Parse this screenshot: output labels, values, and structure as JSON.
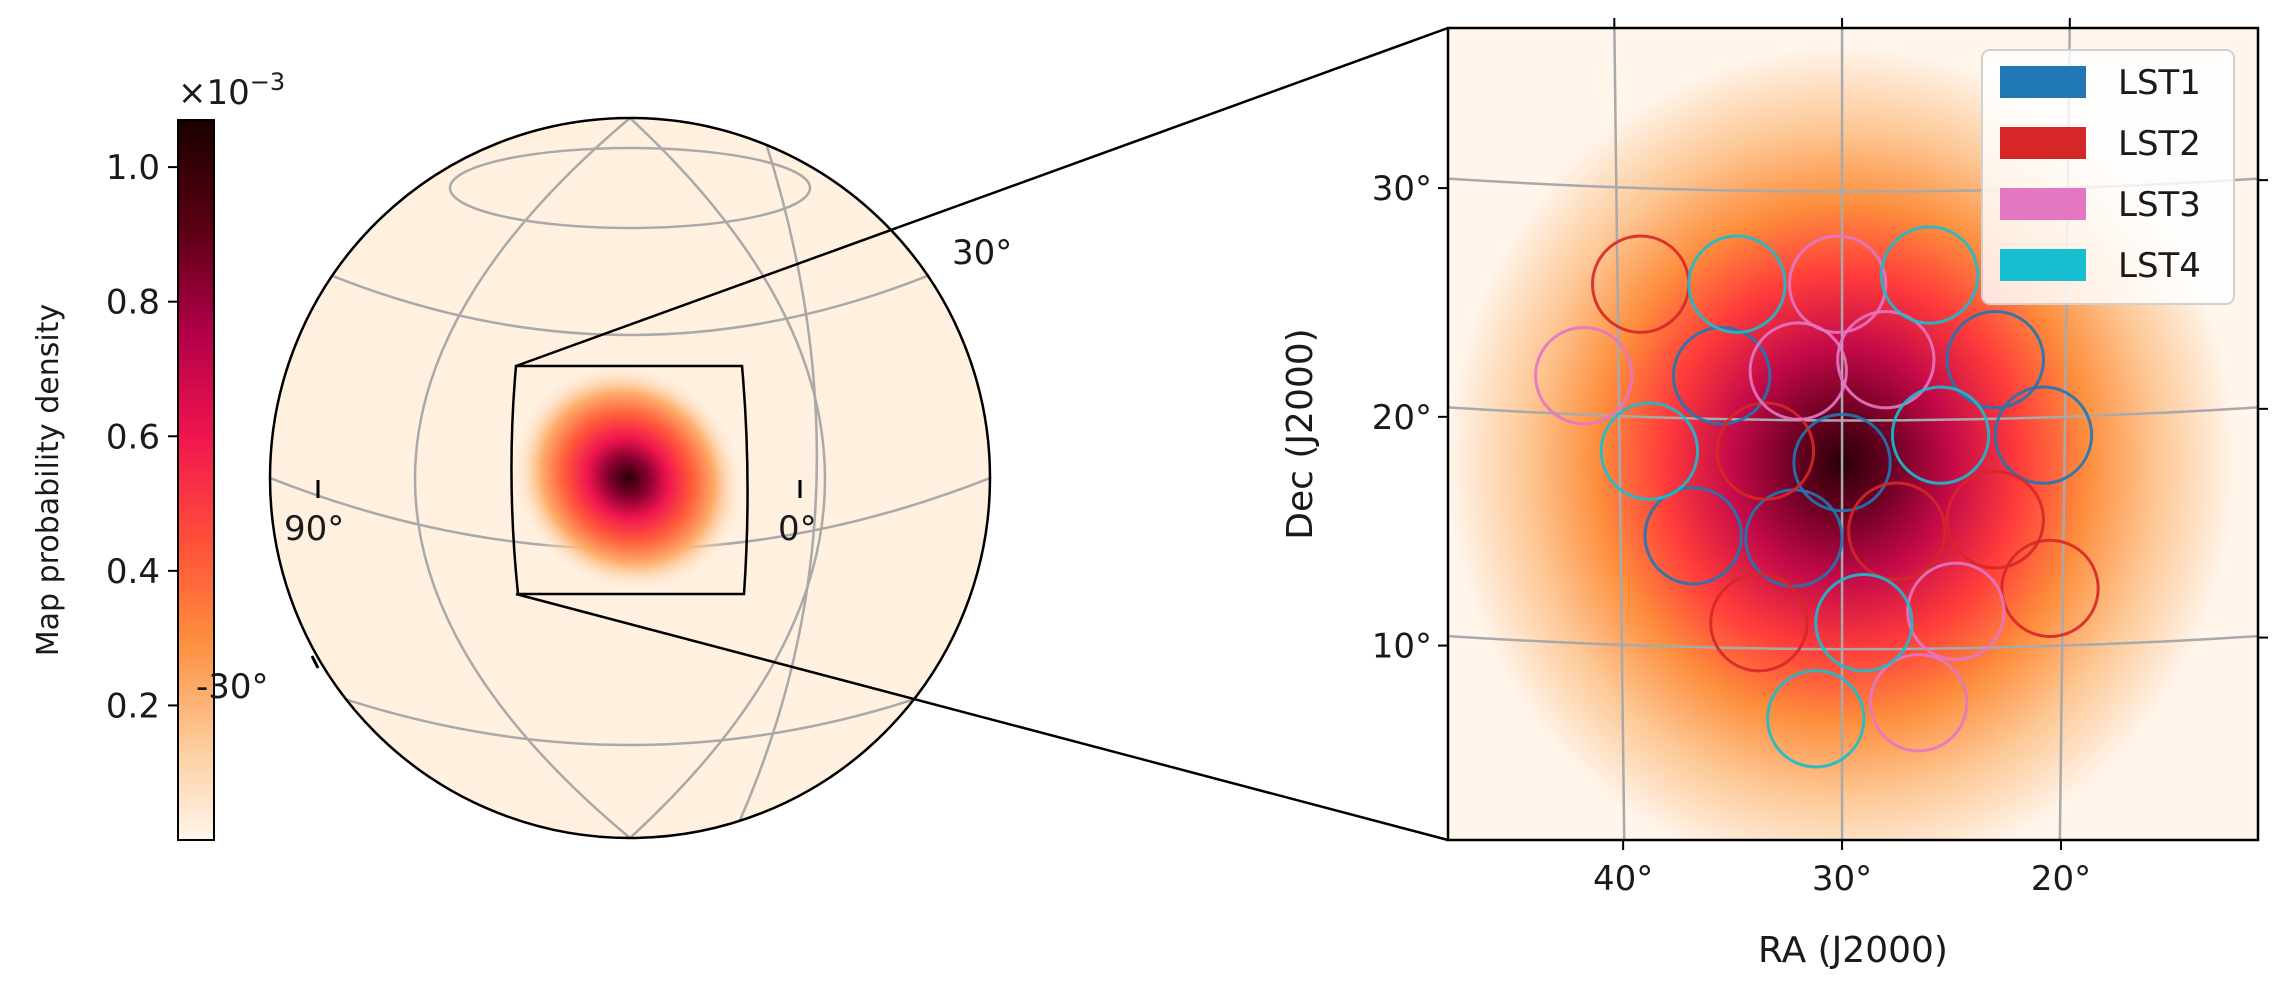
{
  "colorbar": {
    "label": "Map probability density",
    "exponent_prefix": "×10",
    "exponent_power": "−3",
    "range": [
      0.0,
      1.07
    ],
    "ticks": [
      {
        "value": 0.2,
        "label": "0.2"
      },
      {
        "value": 0.4,
        "label": "0.4"
      },
      {
        "value": 0.6,
        "label": "0.6"
      },
      {
        "value": 0.8,
        "label": "0.8"
      },
      {
        "value": 1.0,
        "label": "1.0"
      }
    ],
    "colormap": [
      "#fff5eb",
      "#fdd0a2",
      "#fd8d3c",
      "#ff4d3a",
      "#f0154f",
      "#b4004a",
      "#5a0013",
      "#1a0000"
    ]
  },
  "globe": {
    "dec_labels": [
      "30°",
      "-30°"
    ],
    "ra_labels": [
      "90°",
      "0°"
    ]
  },
  "chart_data": [
    {
      "type": "heatmap",
      "title": "",
      "description_values": "sky probability density map, orthographic globe view",
      "peak_density": 1.07,
      "peak_ra_deg": 30,
      "peak_dec_deg": 18
    },
    {
      "type": "scatter",
      "xlabel": "RA (J2000)",
      "ylabel": "Dec (J2000)",
      "xlim": [
        48,
        11
      ],
      "ylim": [
        1.5,
        37
      ],
      "x_ticks": [
        {
          "value": 40,
          "label": "40°"
        },
        {
          "value": 30,
          "label": "30°"
        },
        {
          "value": 20,
          "label": "20°"
        }
      ],
      "y_ticks": [
        {
          "value": 10,
          "label": "10°"
        },
        {
          "value": 20,
          "label": "20°"
        },
        {
          "value": 30,
          "label": "30°"
        }
      ],
      "grid": true,
      "legend_position": "top-right",
      "heatmap": {
        "peak_ra": 30,
        "peak_dec": 18,
        "peak_value": 1.07
      },
      "series": [
        {
          "name": "LST1",
          "color": "#1f77b4",
          "radius_deg": 2.2,
          "pointings": [
            [
              23,
              22.5
            ],
            [
              20.8,
              19.2
            ],
            [
              36.8,
              14.8
            ],
            [
              32.2,
              14.7
            ],
            [
              35.5,
              21.8
            ],
            [
              30,
              18
            ]
          ]
        },
        {
          "name": "LST2",
          "color": "#d62728",
          "radius_deg": 2.2,
          "pointings": [
            [
              39.2,
              25.8
            ],
            [
              20.5,
              12.5
            ],
            [
              33.8,
              11
            ],
            [
              23,
              15.5
            ],
            [
              27.5,
              15
            ],
            [
              33.5,
              18.5
            ]
          ]
        },
        {
          "name": "LST3",
          "color": "#e377c2",
          "radius_deg": 2.2,
          "pointings": [
            [
              41.8,
              21.8
            ],
            [
              30.2,
              25.8
            ],
            [
              32,
              22
            ],
            [
              28,
              22.5
            ],
            [
              24.8,
              11.5
            ],
            [
              26.5,
              7.5
            ]
          ]
        },
        {
          "name": "LST4",
          "color": "#17becf",
          "radius_deg": 2.2,
          "pointings": [
            [
              34.8,
              25.8
            ],
            [
              26,
              26.2
            ],
            [
              38.8,
              18.5
            ],
            [
              25.5,
              19.2
            ],
            [
              29,
              11
            ],
            [
              31.2,
              6.8
            ]
          ]
        }
      ]
    }
  ]
}
